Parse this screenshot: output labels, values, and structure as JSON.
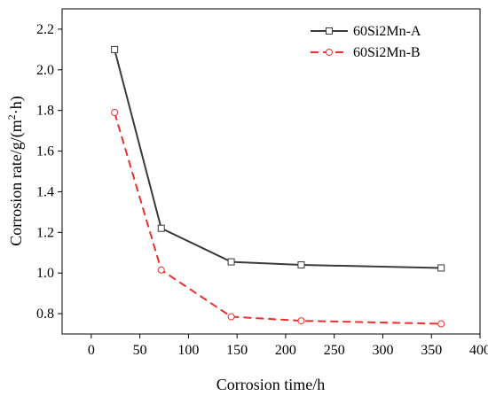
{
  "chart_data": {
    "type": "line",
    "xlabel": "Corrosion time/h",
    "ylabel_main": "Corrosion rate/g/(m",
    "ylabel_sup": "2",
    "ylabel_tail": "·h)",
    "xlim": [
      -30,
      400
    ],
    "ylim": [
      0.7,
      2.3
    ],
    "xticks": [
      0,
      50,
      100,
      150,
      200,
      250,
      300,
      350,
      400
    ],
    "yticks": [
      0.8,
      1.0,
      1.2,
      1.4,
      1.6,
      1.8,
      2.0,
      2.2
    ],
    "xtick_labels": [
      "0",
      "50",
      "100",
      "150",
      "200",
      "250",
      "300",
      "350",
      "400"
    ],
    "ytick_labels": [
      "0.8",
      "1.0",
      "1.2",
      "1.4",
      "1.6",
      "1.8",
      "2.0",
      "2.2"
    ],
    "legend_position": "top-right",
    "series": [
      {
        "name": "60Si2Mn-A",
        "color": "#3a3a3a",
        "line_style": "solid",
        "marker": "square",
        "x": [
          24,
          72,
          144,
          216,
          360
        ],
        "y": [
          2.1,
          1.22,
          1.055,
          1.04,
          1.025
        ]
      },
      {
        "name": "60Si2Mn-B",
        "color": "#e8312f",
        "line_style": "dashed",
        "marker": "circle",
        "x": [
          24,
          72,
          144,
          216,
          360
        ],
        "y": [
          1.79,
          1.015,
          0.785,
          0.765,
          0.75
        ]
      }
    ]
  }
}
